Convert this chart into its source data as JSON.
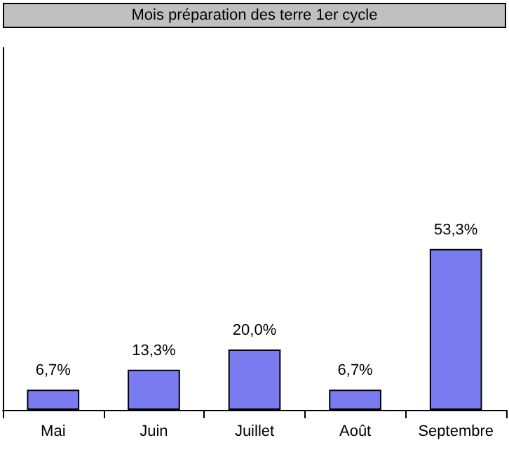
{
  "chart_data": {
    "type": "bar",
    "title": "Mois préparation des terre 1er cycle",
    "categories": [
      "Mai",
      "Juin",
      "Juillet",
      "Août",
      "Septembre"
    ],
    "values": [
      6.7,
      13.3,
      20.0,
      6.7,
      53.3
    ],
    "value_labels": [
      "6,7%",
      "13,3%",
      "20,0%",
      "6,7%",
      "53,3%"
    ],
    "color": "#7b7bf0",
    "ylim": [
      0,
      120
    ],
    "tick_labels": "x"
  }
}
